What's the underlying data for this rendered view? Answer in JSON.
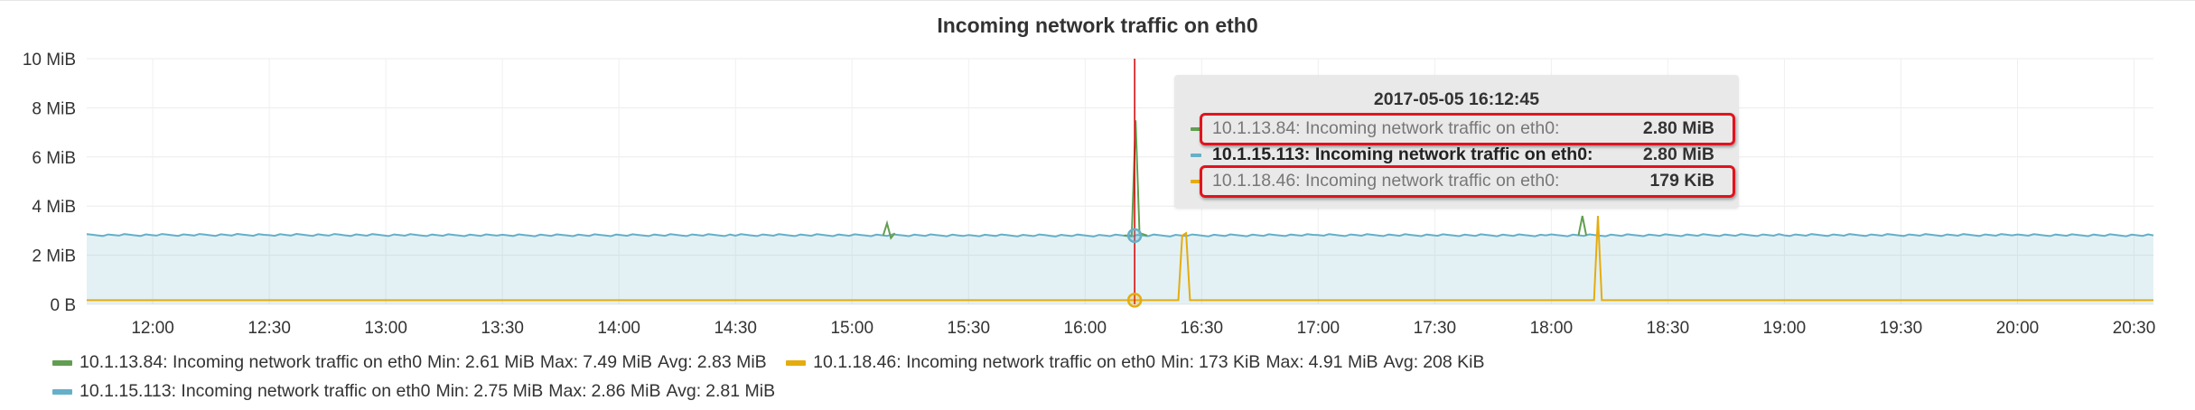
{
  "panel": {
    "title": "Incoming network traffic on eth0"
  },
  "colors": {
    "series_a": "#629e51",
    "series_b": "#e5ac0e",
    "series_c": "#64b0c8",
    "fill": "#64b0c8",
    "crosshair": "#d40000",
    "highlight_border": "#e0141e"
  },
  "chart_data": {
    "type": "line",
    "title": "Incoming network traffic on eth0",
    "x_unit": "time (HH:MM)",
    "y_unit": "MiB",
    "x_range": [
      "11:43",
      "20:35"
    ],
    "ylim": [
      0,
      10
    ],
    "yticks": [
      "0 B",
      "2 MiB",
      "4 MiB",
      "6 MiB",
      "8 MiB",
      "10 MiB"
    ],
    "xticks": [
      "12:00",
      "12:30",
      "13:00",
      "13:30",
      "14:00",
      "14:30",
      "15:00",
      "15:30",
      "16:00",
      "16:30",
      "17:00",
      "17:30",
      "18:00",
      "18:30",
      "19:00",
      "19:30",
      "20:00",
      "20:30"
    ],
    "grid": true,
    "crosshair_time": "16:12:45",
    "series": [
      {
        "name": "10.1.15.113: Incoming network traffic on eth0",
        "color": "#64b0c8",
        "filled": true,
        "points": [
          [
            "11:43",
            2.82
          ],
          [
            "12:30",
            2.83
          ],
          [
            "13:30",
            2.81
          ],
          [
            "14:30",
            2.82
          ],
          [
            "15:30",
            2.81
          ],
          [
            "16:12",
            2.8
          ],
          [
            "17:00",
            2.82
          ],
          [
            "18:00",
            2.81
          ],
          [
            "19:00",
            2.82
          ],
          [
            "20:00",
            2.82
          ],
          [
            "20:35",
            2.81
          ]
        ]
      },
      {
        "name": "10.1.13.84: Incoming network traffic on eth0",
        "color": "#629e51",
        "filled": false,
        "points": [
          [
            "15:08",
            2.8
          ],
          [
            "15:09",
            3.3
          ],
          [
            "15:10",
            2.7
          ],
          [
            "15:11",
            2.9
          ],
          [
            "16:10",
            2.8
          ],
          [
            "16:12",
            2.8
          ],
          [
            "16:13",
            7.49
          ],
          [
            "16:14",
            2.9
          ],
          [
            "16:16",
            2.8
          ],
          [
            "18:07",
            2.8
          ],
          [
            "18:08",
            3.6
          ],
          [
            "18:09",
            2.8
          ]
        ]
      },
      {
        "name": "10.1.18.46: Incoming network traffic on eth0",
        "color": "#e5ac0e",
        "filled": false,
        "points": [
          [
            "11:43",
            0.17
          ],
          [
            "16:12",
            0.17
          ],
          [
            "16:24",
            0.17
          ],
          [
            "16:25",
            2.8
          ],
          [
            "16:26",
            2.9
          ],
          [
            "16:27",
            0.17
          ],
          [
            "18:11",
            0.17
          ],
          [
            "18:12",
            3.6
          ],
          [
            "18:13",
            0.17
          ],
          [
            "20:35",
            0.17
          ]
        ]
      }
    ]
  },
  "tooltip": {
    "time": "2017-05-05 16:12:45",
    "rows": [
      {
        "label": "10.1.13.84: Incoming network traffic on eth0:",
        "value": "2.80 MiB",
        "color": "#629e51",
        "bold": false,
        "highlighted": true
      },
      {
        "label": "10.1.15.113: Incoming network traffic on eth0:",
        "value": "2.80 MiB",
        "color": "#64b0c8",
        "bold": true,
        "highlighted": false
      },
      {
        "label": "10.1.18.46: Incoming network traffic on eth0:",
        "value": "179 KiB",
        "color": "#e5ac0e",
        "bold": false,
        "highlighted": true
      }
    ]
  },
  "legend": {
    "items": [
      {
        "name": "10.1.13.84: Incoming network traffic on eth0",
        "color": "#629e51",
        "min_label": "Min:",
        "min": "2.61 MiB",
        "max_label": "Max:",
        "max": "7.49 MiB",
        "avg_label": "Avg:",
        "avg": "2.83 MiB"
      },
      {
        "name": "10.1.18.46: Incoming network traffic on eth0",
        "color": "#e5ac0e",
        "min_label": "Min:",
        "min": "173 KiB",
        "max_label": "Max:",
        "max": "4.91 MiB",
        "avg_label": "Avg:",
        "avg": "208 KiB"
      },
      {
        "name": "10.1.15.113: Incoming network traffic on eth0",
        "color": "#64b0c8",
        "min_label": "Min:",
        "min": "2.75 MiB",
        "max_label": "Max:",
        "max": "2.86 MiB",
        "avg_label": "Avg:",
        "avg": "2.81 MiB"
      }
    ]
  }
}
